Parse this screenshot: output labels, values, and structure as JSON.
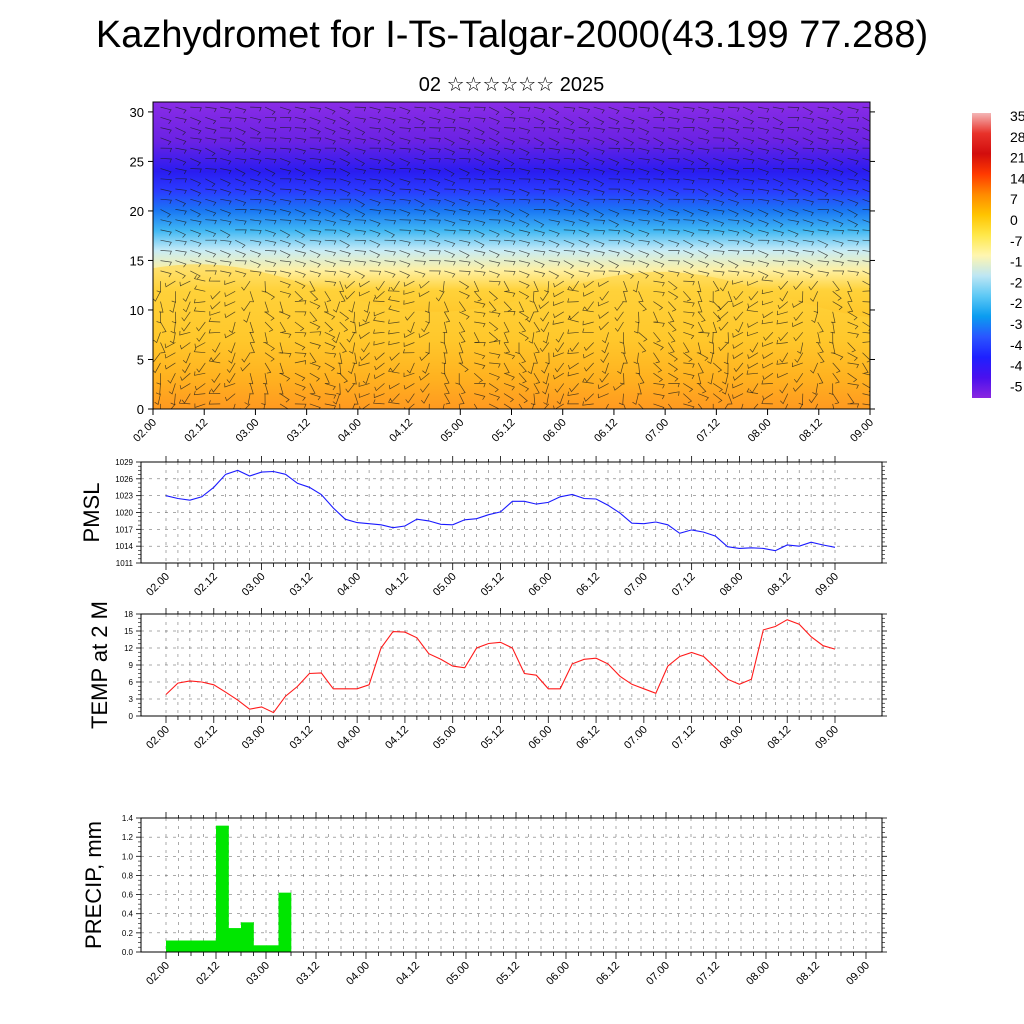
{
  "title": "Kazhydromet for I-Ts-Talgar-2000(43.199 77.288)",
  "subtitle": "02 ☆☆☆☆☆☆ 2025",
  "colors": {
    "pmsl_line": "#1a1aff",
    "temp_line": "#ff1a1a",
    "precip_bar": "#00e600",
    "frame": "#000000"
  },
  "chart_data": [
    {
      "type": "heatmap",
      "name": "cross-section",
      "x_ticks": [
        "02.00",
        "02.12",
        "03.00",
        "03.12",
        "04.00",
        "04.12",
        "05.00",
        "05.12",
        "06.00",
        "06.12",
        "07.00",
        "07.12",
        "08.00",
        "08.12",
        "09.00"
      ],
      "y_ticks": [
        "0",
        "5",
        "10",
        "15",
        "20",
        "25",
        "30"
      ],
      "ylim": [
        0,
        31
      ],
      "colorbar_labels": [
        "35",
        "28",
        "21",
        "14",
        "7",
        "0",
        "-7",
        "-1",
        "-2",
        "-2",
        "-3",
        "-4",
        "-4",
        "-5"
      ],
      "colorbar_colors": [
        "#f4b6b6",
        "#e8322a",
        "#d20d0d",
        "#ff3a00",
        "#ff8a00",
        "#ffc400",
        "#ffe84a",
        "#fff6b0",
        "#bde6f4",
        "#5cc8f5",
        "#0a9cf0",
        "#2a55ff",
        "#1e20ff",
        "#4a10ee",
        "#8a26e0"
      ],
      "bands": [
        {
          "level": 0,
          "color": "#ff5500"
        },
        {
          "level": 3,
          "color": "#ff8a00"
        },
        {
          "level": 7,
          "color": "#ffbc1a"
        },
        {
          "level": 12,
          "color": "#ffd23a"
        },
        {
          "level": 14,
          "color": "#fff0a0"
        },
        {
          "level": 16,
          "color": "#c8ecf6"
        },
        {
          "level": 18,
          "color": "#40b8f4"
        },
        {
          "level": 20,
          "color": "#1a78f4"
        },
        {
          "level": 22,
          "color": "#2a3cff"
        },
        {
          "level": 24,
          "color": "#2a1cf0"
        },
        {
          "level": 27,
          "color": "#6a22e4"
        },
        {
          "level": 31,
          "color": "#8a2ce6"
        }
      ]
    },
    {
      "type": "line",
      "name": "pmsl",
      "ylabel": "PMSL",
      "y_ticks": [
        "1011",
        "1014",
        "1017",
        "1020",
        "1023",
        "1026",
        "1029"
      ],
      "ylim": [
        1011,
        1029
      ],
      "x_ticks": [
        "02.00",
        "02.12",
        "03.00",
        "03.12",
        "04.00",
        "04.12",
        "05.00",
        "05.12",
        "06.00",
        "06.12",
        "07.00",
        "07.12",
        "08.00",
        "08.12",
        "09.00"
      ],
      "x": [
        0,
        3,
        6,
        9,
        12,
        15,
        18,
        21,
        24,
        27,
        30,
        33,
        36,
        39,
        42,
        45,
        48,
        51,
        54,
        57,
        60,
        63,
        66,
        69,
        72,
        75,
        78,
        81,
        84,
        87,
        90,
        93,
        96,
        99,
        102,
        105,
        108,
        111,
        114,
        117,
        120,
        123,
        126,
        129,
        132,
        135,
        138,
        141,
        144,
        147,
        150,
        153,
        156,
        159,
        162,
        165,
        168
      ],
      "values": [
        1023,
        1022.5,
        1022.2,
        1022.8,
        1024.5,
        1026.8,
        1027.5,
        1026.5,
        1027.2,
        1027.3,
        1026.8,
        1025.2,
        1024.5,
        1023.2,
        1020.8,
        1018.8,
        1018.2,
        1018,
        1017.8,
        1017.3,
        1017.6,
        1018.8,
        1018.5,
        1017.9,
        1017.8,
        1018.7,
        1018.9,
        1019.6,
        1020.1,
        1022.0,
        1022.0,
        1021.5,
        1021.8,
        1022.8,
        1023.2,
        1022.5,
        1022.4,
        1021.3,
        1019.9,
        1018.1,
        1018.0,
        1018.3,
        1017.8,
        1016.3,
        1016.9,
        1016.5,
        1015.8,
        1013.9,
        1013.6,
        1013.7,
        1013.6,
        1013.2,
        1014.2,
        1014.0,
        1014.7,
        1014.2,
        1013.8
      ]
    },
    {
      "type": "line",
      "name": "temp",
      "ylabel": "TEMP at 2 M",
      "y_ticks": [
        "0",
        "3",
        "6",
        "9",
        "12",
        "15",
        "18"
      ],
      "ylim": [
        0,
        18
      ],
      "x_ticks": [
        "02.00",
        "02.12",
        "03.00",
        "03.12",
        "04.00",
        "04.12",
        "05.00",
        "05.12",
        "06.00",
        "06.12",
        "07.00",
        "07.12",
        "08.00",
        "08.12",
        "09.00"
      ],
      "x": [
        0,
        3,
        6,
        9,
        12,
        15,
        18,
        21,
        24,
        27,
        30,
        33,
        36,
        39,
        42,
        45,
        48,
        51,
        54,
        57,
        60,
        63,
        66,
        69,
        72,
        75,
        78,
        81,
        84,
        87,
        90,
        93,
        96,
        99,
        102,
        105,
        108,
        111,
        114,
        117,
        120,
        123,
        126,
        129,
        132,
        135,
        138,
        141,
        144,
        147,
        150,
        153,
        156,
        159,
        162,
        165,
        168
      ],
      "values": [
        3.8,
        5.8,
        6.2,
        6.0,
        5.5,
        4.2,
        2.8,
        1.2,
        1.6,
        0.6,
        3.5,
        5.2,
        7.5,
        7.6,
        4.8,
        4.8,
        4.8,
        5.5,
        12.0,
        14.9,
        14.8,
        13.8,
        11.0,
        10.0,
        8.8,
        8.5,
        12.0,
        12.8,
        13.0,
        12.0,
        7.5,
        7.2,
        4.8,
        4.8,
        9.2,
        10.0,
        10.2,
        9.2,
        7.0,
        5.6,
        4.8,
        4.0,
        8.8,
        10.5,
        11.2,
        10.5,
        8.5,
        6.5,
        5.6,
        6.5,
        15.2,
        15.8,
        17.0,
        16.2,
        14.0,
        12.4,
        11.8
      ]
    },
    {
      "type": "bar",
      "name": "precip",
      "ylabel": "PRECIP, mm",
      "y_ticks": [
        "0.0",
        "0.2",
        "0.4",
        "0.6",
        "0.8",
        "1.0",
        "1.2",
        "1.4"
      ],
      "ylim": [
        0,
        1.4
      ],
      "x_ticks": [
        "02.00",
        "02.12",
        "03.00",
        "03.12",
        "04.00",
        "04.12",
        "05.00",
        "05.12",
        "06.00",
        "06.12",
        "07.00",
        "07.12",
        "08.00",
        "08.12",
        "09.00"
      ],
      "x": [
        0,
        3,
        6,
        9,
        12,
        15,
        18,
        21,
        24,
        27
      ],
      "values": [
        0.12,
        0.12,
        0.12,
        0.12,
        1.32,
        0.25,
        0.31,
        0.07,
        0.07,
        0.62
      ]
    }
  ]
}
